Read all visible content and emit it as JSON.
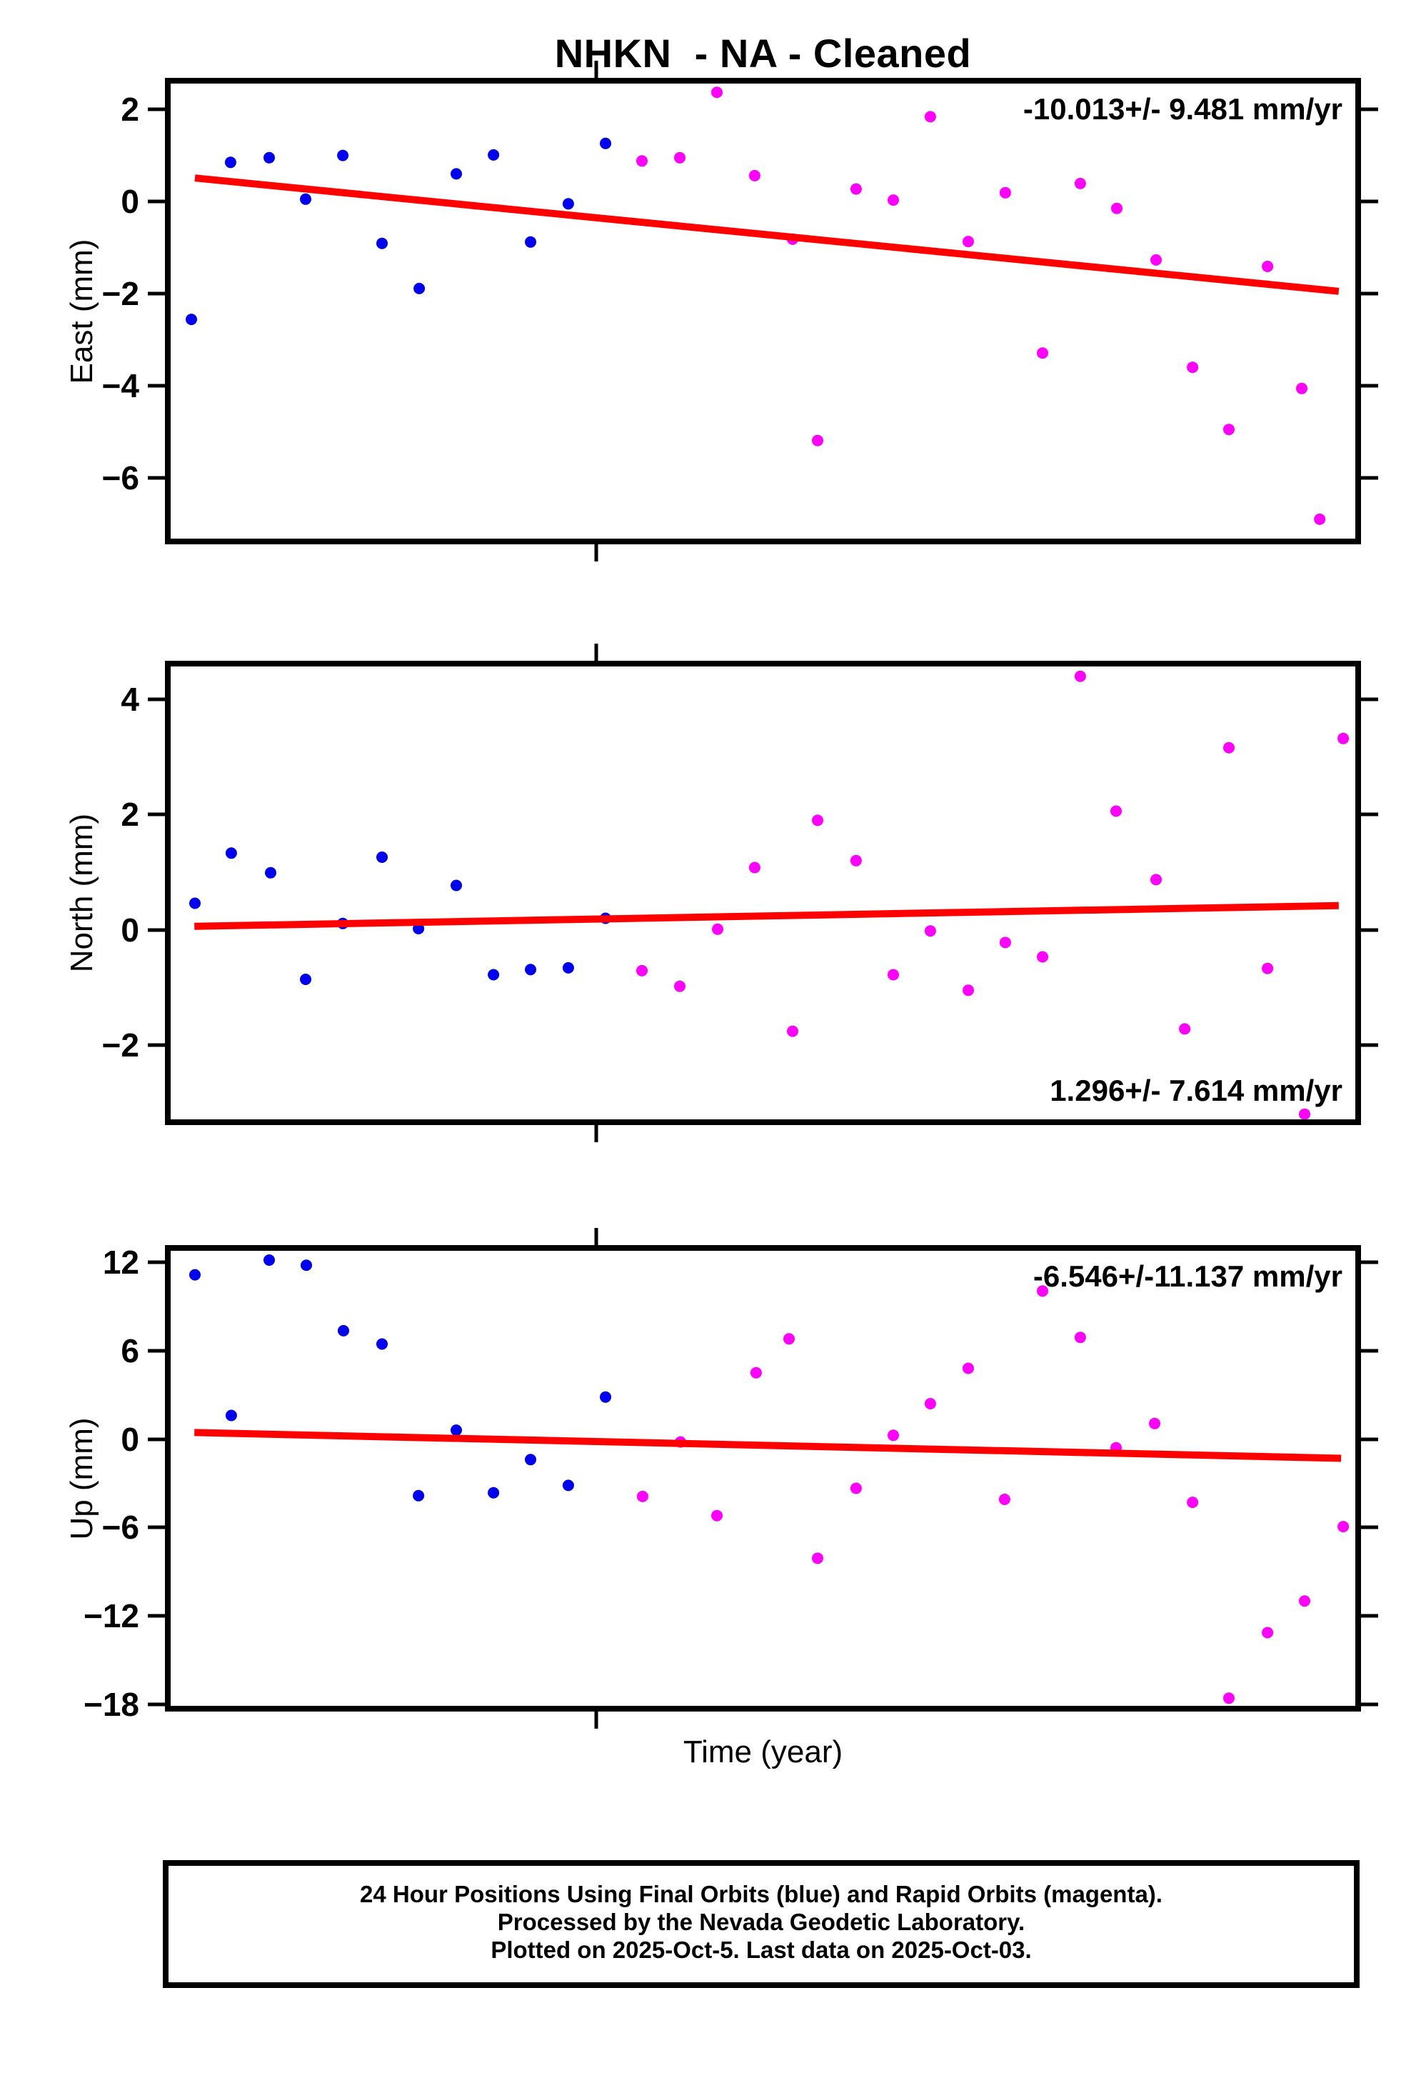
{
  "title": "NHKN  - NA - Cleaned",
  "xlabel": "Time (year)",
  "colors": {
    "final_orbits_blue": "#0000f0",
    "rapid_orbits_magenta": "#ff00ff",
    "trend_red": "#ff0000",
    "frame_black": "#000000"
  },
  "footer": {
    "line1": "24 Hour Positions Using Final Orbits (blue) and Rapid Orbits (magenta).",
    "line2": "Processed by the Nevada Geodetic Laboratory.",
    "line3": "Plotted on 2025-Oct-5. Last data on 2025-Oct-03."
  },
  "chart_data": [
    {
      "panel": "east",
      "type": "scatter",
      "ylabel": "East (mm)",
      "ylim": [
        -7.32,
        2.56
      ],
      "yticks": [
        2,
        0,
        -2,
        -4,
        -6
      ],
      "xtick_fracs": [
        0.359
      ],
      "annotation": "-10.013+/- 9.481 mm/yr",
      "annotation_pos": "top-right",
      "trend": {
        "x0": 0.0205,
        "v0": 0.51,
        "x1": 0.986,
        "v1": -1.95
      },
      "series": [
        {
          "name": "final-orbits",
          "color_key": "final_orbits_blue",
          "points": [
            [
              0.0175,
              -2.56
            ],
            [
              0.0506,
              0.85
            ],
            [
              0.0832,
              0.95
            ],
            [
              0.1139,
              0.05
            ],
            [
              0.1453,
              1.0
            ],
            [
              0.1784,
              -0.91
            ],
            [
              0.2098,
              -1.89
            ],
            [
              0.2411,
              0.6
            ],
            [
              0.2725,
              1.01
            ],
            [
              0.3038,
              -0.88
            ],
            [
              0.3357,
              -0.05
            ],
            [
              0.3671,
              1.26
            ]
          ]
        },
        {
          "name": "rapid-orbits",
          "color_key": "rapid_orbits_magenta",
          "points": [
            [
              0.3978,
              0.88
            ],
            [
              0.4298,
              0.95
            ],
            [
              0.4611,
              2.37
            ],
            [
              0.493,
              0.56
            ],
            [
              0.525,
              -0.82
            ],
            [
              0.5461,
              -5.19
            ],
            [
              0.5786,
              0.27
            ],
            [
              0.61,
              0.03
            ],
            [
              0.6413,
              1.84
            ],
            [
              0.6733,
              -0.87
            ],
            [
              0.7046,
              0.19
            ],
            [
              0.736,
              -3.29
            ],
            [
              0.7679,
              0.39
            ],
            [
              0.7987,
              -0.15
            ],
            [
              0.8318,
              -1.27
            ],
            [
              0.8626,
              -3.6
            ],
            [
              0.8933,
              -4.95
            ],
            [
              0.9259,
              -1.41
            ],
            [
              0.9548,
              -4.06
            ],
            [
              0.97,
              -6.9
            ]
          ]
        }
      ]
    },
    {
      "panel": "north",
      "type": "scatter",
      "ylabel": "North (mm)",
      "ylim": [
        -3.29,
        4.57
      ],
      "yticks": [
        4,
        2,
        0,
        -2
      ],
      "xtick_fracs": [
        0.359
      ],
      "annotation": "1.296+/- 7.614 mm/yr",
      "annotation_pos": "bottom-right",
      "trend": {
        "x0": 0.02,
        "v0": 0.06,
        "x1": 0.986,
        "v1": 0.42
      },
      "series": [
        {
          "name": "final-orbits",
          "color_key": "final_orbits_blue",
          "points": [
            [
              0.0205,
              0.46
            ],
            [
              0.0512,
              1.33
            ],
            [
              0.0844,
              0.99
            ],
            [
              0.1139,
              -0.86
            ],
            [
              0.1453,
              0.11
            ],
            [
              0.1784,
              1.26
            ],
            [
              0.2092,
              0.02
            ],
            [
              0.2411,
              0.77
            ],
            [
              0.2725,
              -0.78
            ],
            [
              0.3038,
              -0.69
            ],
            [
              0.3357,
              -0.66
            ],
            [
              0.3671,
              0.2
            ]
          ]
        },
        {
          "name": "rapid-orbits",
          "color_key": "rapid_orbits_magenta",
          "points": [
            [
              0.3978,
              -0.71
            ],
            [
              0.4298,
              -0.98
            ],
            [
              0.4617,
              0.01
            ],
            [
              0.493,
              1.08
            ],
            [
              0.525,
              -1.76
            ],
            [
              0.5461,
              1.9
            ],
            [
              0.5786,
              1.2
            ],
            [
              0.61,
              -0.78
            ],
            [
              0.6413,
              -0.02
            ],
            [
              0.6733,
              -1.05
            ],
            [
              0.7046,
              -0.22
            ],
            [
              0.736,
              -0.47
            ],
            [
              0.7679,
              4.4
            ],
            [
              0.7981,
              2.06
            ],
            [
              0.8318,
              0.87
            ],
            [
              0.856,
              -1.72
            ],
            [
              0.8933,
              3.16
            ],
            [
              0.9259,
              -0.67
            ],
            [
              0.9572,
              -3.2
            ],
            [
              0.9898,
              3.32
            ]
          ]
        }
      ]
    },
    {
      "panel": "up",
      "type": "scatter",
      "ylabel": "Up (mm)",
      "ylim": [
        -18.12,
        12.78
      ],
      "yticks": [
        12,
        6,
        0,
        -6,
        -12,
        -18
      ],
      "xtick_fracs": [
        0.359
      ],
      "annotation": "-6.546+/-11.137 mm/yr",
      "annotation_pos": "top-right",
      "trend": {
        "x0": 0.02,
        "v0": 0.44,
        "x1": 0.988,
        "v1": -1.31
      },
      "series": [
        {
          "name": "final-orbits",
          "color_key": "final_orbits_blue",
          "points": [
            [
              0.0205,
              11.15
            ],
            [
              0.0512,
              1.6
            ],
            [
              0.0832,
              12.15
            ],
            [
              0.1145,
              11.8
            ],
            [
              0.1459,
              7.35
            ],
            [
              0.1784,
              6.45
            ],
            [
              0.2092,
              -3.85
            ],
            [
              0.2411,
              0.6
            ],
            [
              0.2725,
              -3.65
            ],
            [
              0.3038,
              -1.4
            ],
            [
              0.3357,
              -3.15
            ],
            [
              0.3671,
              2.85
            ]
          ]
        },
        {
          "name": "rapid-orbits",
          "color_key": "rapid_orbits_magenta",
          "points": [
            [
              0.3984,
              -3.9
            ],
            [
              0.4304,
              -0.2
            ],
            [
              0.4611,
              -5.2
            ],
            [
              0.4942,
              4.5
            ],
            [
              0.522,
              6.8
            ],
            [
              0.5461,
              -8.1
            ],
            [
              0.5786,
              -3.35
            ],
            [
              0.61,
              0.25
            ],
            [
              0.6413,
              2.4
            ],
            [
              0.6733,
              4.8
            ],
            [
              0.704,
              -4.1
            ],
            [
              0.736,
              10.05
            ],
            [
              0.7679,
              6.9
            ],
            [
              0.7981,
              -0.6
            ],
            [
              0.8306,
              1.05
            ],
            [
              0.8626,
              -4.3
            ],
            [
              0.8933,
              -17.6
            ],
            [
              0.9259,
              -13.15
            ],
            [
              0.9572,
              -11.0
            ],
            [
              0.9898,
              -5.95
            ]
          ]
        }
      ]
    }
  ]
}
